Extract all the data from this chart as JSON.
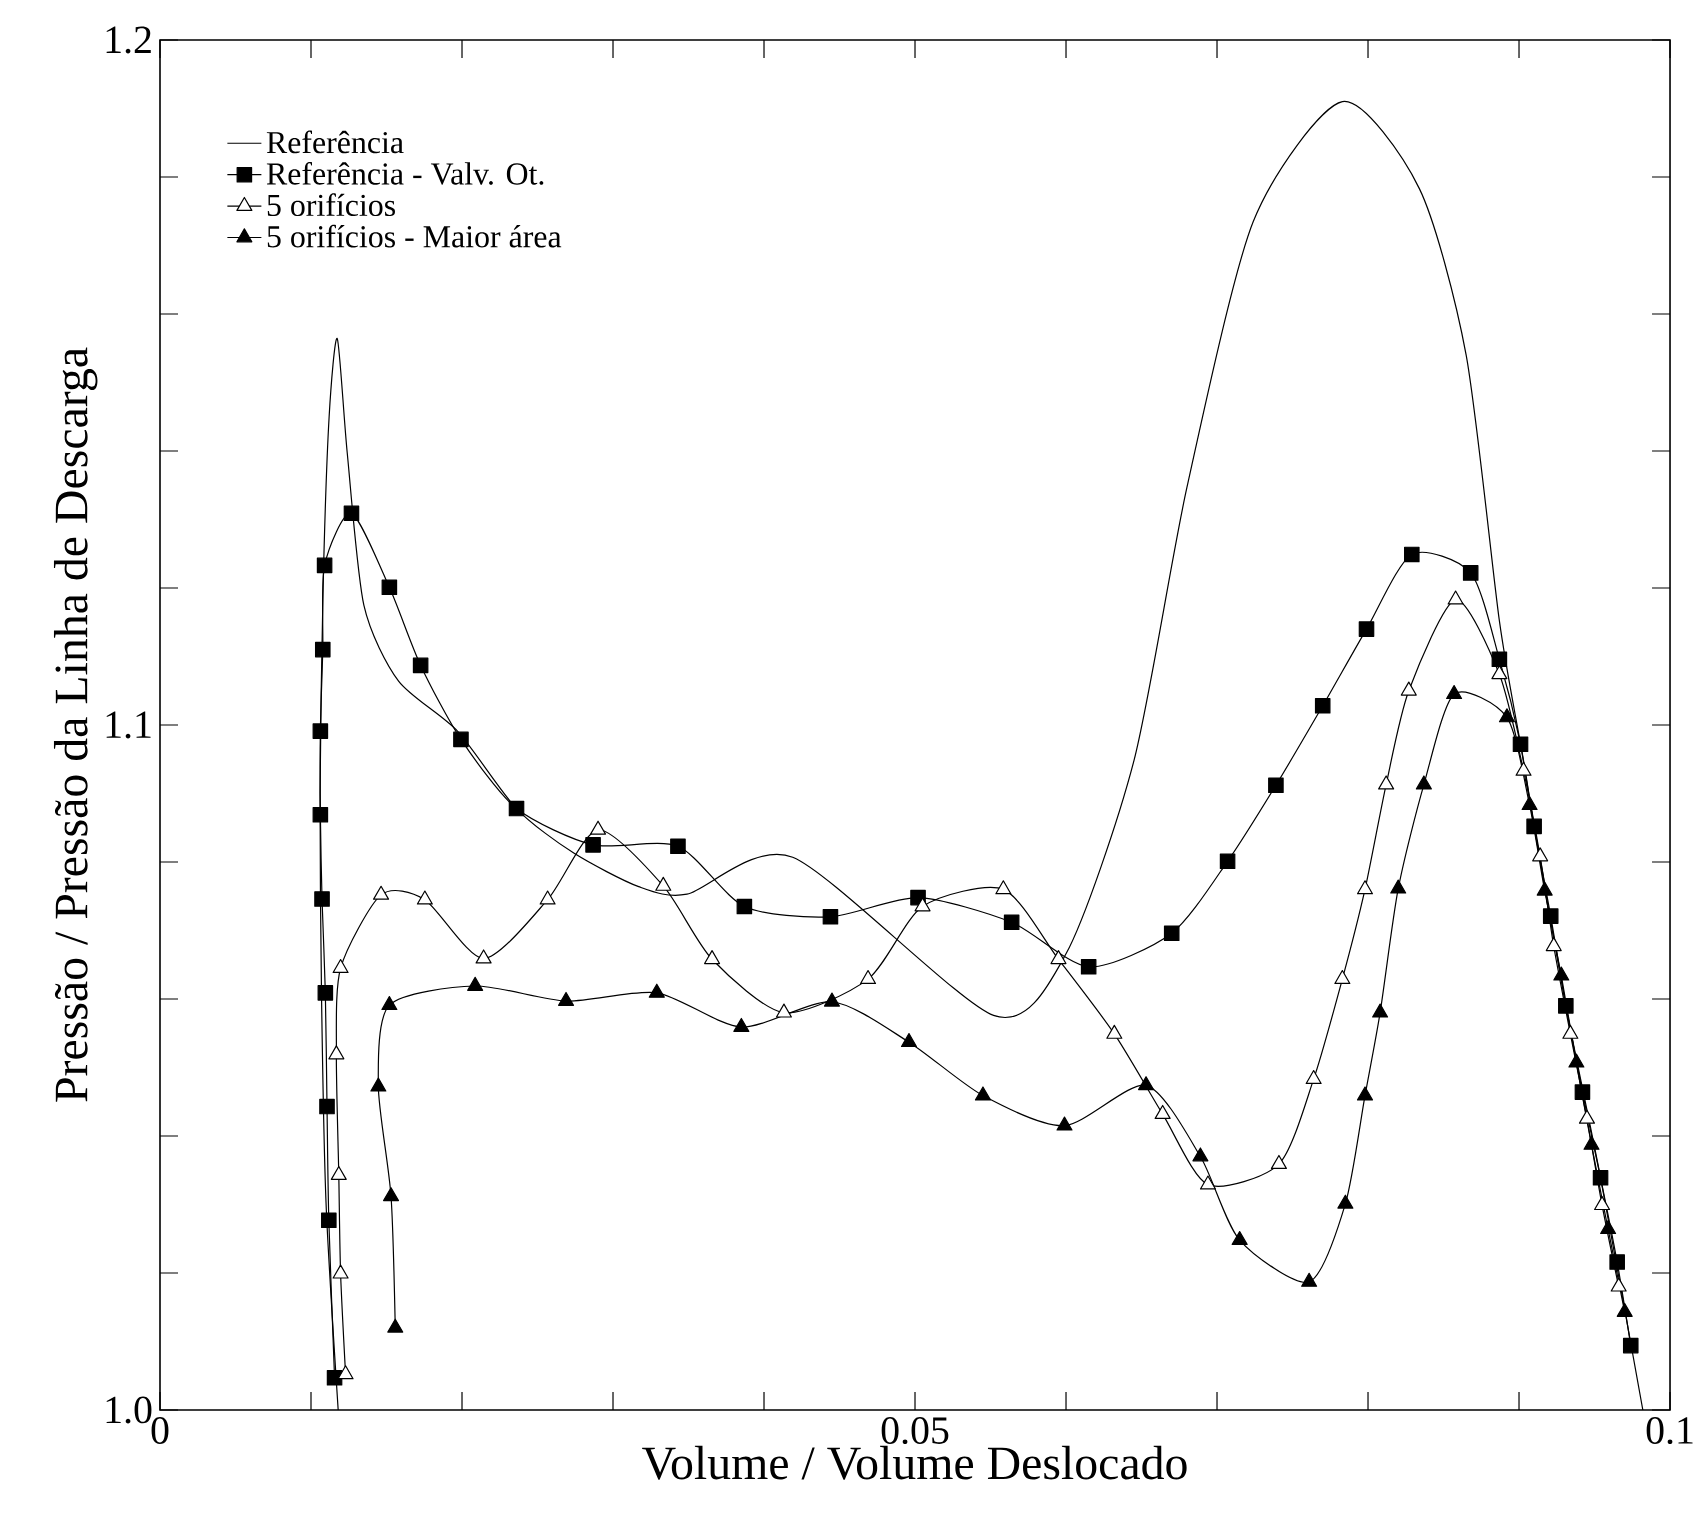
{
  "chart_data": {
    "type": "line",
    "xlabel": "Volume / Volume Deslocado",
    "ylabel": "Pressão / Pressão da Linha de Descarga",
    "xlim": [
      0,
      0.1
    ],
    "ylim": [
      1.0,
      1.2
    ],
    "xticks": [
      0,
      {
        "value": 0.01,
        "label": null
      },
      {
        "value": 0.02,
        "label": null
      },
      {
        "value": 0.03,
        "label": null
      },
      {
        "value": 0.04,
        "label": null
      },
      0.05,
      {
        "value": 0.06,
        "label": null
      },
      {
        "value": 0.07,
        "label": null
      },
      {
        "value": 0.08,
        "label": null
      },
      {
        "value": 0.09,
        "label": null
      },
      0.1
    ],
    "yticks": [
      {
        "value": 1.0,
        "label": "1.0"
      },
      {
        "value": 1.02,
        "label": null
      },
      {
        "value": 1.04,
        "label": null
      },
      {
        "value": 1.06,
        "label": null
      },
      {
        "value": 1.08,
        "label": null
      },
      {
        "value": 1.1,
        "label": "1.1"
      },
      {
        "value": 1.12,
        "label": null
      },
      {
        "value": 1.14,
        "label": null
      },
      {
        "value": 1.16,
        "label": null
      },
      {
        "value": 1.18,
        "label": null
      },
      {
        "value": 1.2,
        "label": "1.2"
      }
    ],
    "legend": "top left",
    "grid": false,
    "line_style": "solid",
    "series": [
      {
        "name": "Referência",
        "color": "#000000",
        "marker": "none",
        "x": [
          0.0118,
          0.011,
          0.0107,
          0.0106,
          0.0108,
          0.0112,
          0.01174,
          0.0124,
          0.0135,
          0.0158,
          0.0197,
          0.0236,
          0.0274,
          0.0317,
          0.0349,
          0.0419,
          0.0552,
          0.06,
          0.0645,
          0.068,
          0.0724,
          0.0783,
          0.0834,
          0.0865,
          0.0887,
          0.0901,
          0.091,
          0.0931,
          0.0954,
          0.0982
        ],
        "values": [
          1.0,
          1.03,
          1.06,
          1.09,
          1.12,
          1.145,
          1.1564,
          1.1397,
          1.1175,
          1.1064,
          1.0991,
          1.0878,
          1.0813,
          1.0764,
          1.0753,
          1.0807,
          1.0576,
          1.0666,
          1.0948,
          1.1346,
          1.1735,
          1.191,
          1.1783,
          1.154,
          1.1152,
          1.0972,
          1.0852,
          1.059,
          1.0339,
          1.0
        ]
      },
      {
        "name": "Referência - Valv. Ot.",
        "color": "#000000",
        "marker": "square",
        "x": [
          0.01156,
          0.01118,
          0.01106,
          0.01095,
          0.01073,
          0.01062,
          0.01062,
          0.01078,
          0.0109,
          0.01268,
          0.01519,
          0.01726,
          0.01993,
          0.02361,
          0.02868,
          0.0343,
          0.0387,
          0.0444,
          0.0502,
          0.0564,
          0.0615,
          0.067,
          0.0707,
          0.0739,
          0.077,
          0.0799,
          0.0829,
          0.0868,
          0.0887,
          0.0901,
          0.091,
          0.0921,
          0.0931,
          0.0942,
          0.0954,
          0.0965,
          0.0974
        ],
        "values": [
          1.0047,
          1.0277,
          1.0443,
          1.0609,
          1.0746,
          1.0869,
          1.0991,
          1.111,
          1.1233,
          1.1309,
          1.1201,
          1.1087,
          1.0979,
          1.0878,
          1.0825,
          1.0823,
          1.0735,
          1.072,
          1.0748,
          1.0712,
          1.0647,
          1.0696,
          1.0801,
          1.0912,
          1.1028,
          1.114,
          1.1249,
          1.1222,
          1.1096,
          1.0972,
          1.0852,
          1.0721,
          1.059,
          1.0464,
          1.0339,
          1.0216,
          1.0094
        ]
      },
      {
        "name": "5 orifícios",
        "color": "#000000",
        "marker": "triangle-open",
        "x": [
          0.01229,
          0.01196,
          0.01184,
          0.01168,
          0.01196,
          0.01464,
          0.01754,
          0.02143,
          0.02567,
          0.02901,
          0.03333,
          0.03656,
          0.04132,
          0.04689,
          0.0505,
          0.05585,
          0.0595,
          0.0632,
          0.0664,
          0.0694,
          0.0741,
          0.0764,
          0.0783,
          0.0798,
          0.0812,
          0.0827,
          0.0858,
          0.0887,
          0.0903,
          0.0914,
          0.0923,
          0.0934,
          0.0945,
          0.0955,
          0.0966
        ],
        "values": [
          1.0052,
          1.0199,
          1.0343,
          1.0519,
          1.0645,
          1.0752,
          1.0745,
          1.0659,
          1.0745,
          1.0847,
          1.0765,
          1.0658,
          1.058,
          1.0629,
          1.0735,
          1.076,
          1.0658,
          1.0549,
          1.0432,
          1.0329,
          1.0359,
          1.0483,
          1.0629,
          1.076,
          1.0913,
          1.105,
          1.1183,
          1.1074,
          1.0933,
          1.0808,
          1.0677,
          1.0549,
          1.0425,
          1.0299,
          1.018
        ]
      },
      {
        "name": "5 orifícios - Maior área",
        "color": "#000000",
        "marker": "triangle",
        "x": [
          0.01558,
          0.0153,
          0.01446,
          0.01519,
          0.02087,
          0.02689,
          0.0329,
          0.0385,
          0.0445,
          0.0496,
          0.0545,
          0.0599,
          0.0653,
          0.0689,
          0.0715,
          0.0761,
          0.0785,
          0.0798,
          0.0808,
          0.082,
          0.0837,
          0.0857,
          0.0892,
          0.0907,
          0.0917,
          0.0928,
          0.0938,
          0.0948,
          0.0959,
          0.097
        ],
        "values": [
          1.012,
          1.0312,
          1.0472,
          1.0591,
          1.0619,
          1.0597,
          1.0609,
          1.0559,
          1.0596,
          1.0537,
          1.0459,
          1.0415,
          1.0474,
          1.037,
          1.0248,
          1.0187,
          1.0301,
          1.0459,
          1.058,
          1.0761,
          1.0913,
          1.1045,
          1.1011,
          1.0883,
          1.0758,
          1.0634,
          1.0507,
          1.0387,
          1.0264,
          1.0143
        ]
      }
    ]
  }
}
